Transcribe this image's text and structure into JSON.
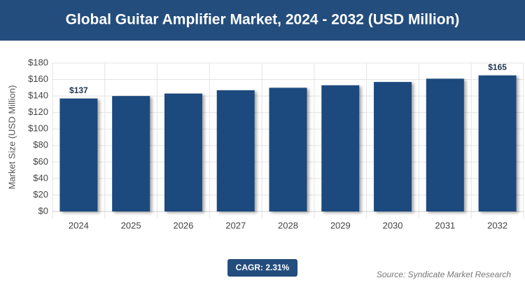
{
  "chart_data": {
    "type": "bar",
    "title": "Global Guitar Amplifier Market, 2024 - 2032 (USD Million)",
    "y_axis_label": "Market Size (USD Million)",
    "categories": [
      "2024",
      "2025",
      "2026",
      "2027",
      "2028",
      "2029",
      "2030",
      "2031",
      "2032"
    ],
    "values": [
      137,
      140,
      143,
      147,
      150,
      153,
      157,
      161,
      165
    ],
    "value_labels": [
      "$137",
      null,
      null,
      null,
      null,
      null,
      null,
      null,
      "$165"
    ],
    "color": "#1f4a7e",
    "ylim": [
      0,
      180
    ],
    "yticks": [
      {
        "value": 0,
        "label": "$0"
      },
      {
        "value": 20,
        "label": "$20"
      },
      {
        "value": 40,
        "label": "$40"
      },
      {
        "value": 60,
        "label": "$60"
      },
      {
        "value": 80,
        "label": "$80"
      },
      {
        "value": 100,
        "label": "$100"
      },
      {
        "value": 120,
        "label": "$120"
      },
      {
        "value": 140,
        "label": "$140"
      },
      {
        "value": 160,
        "label": "$160"
      },
      {
        "value": 180,
        "label": "$180"
      }
    ],
    "grid": true,
    "cagr": "CAGR: 2.31%",
    "source": "Source: Syndicate Market Research"
  }
}
